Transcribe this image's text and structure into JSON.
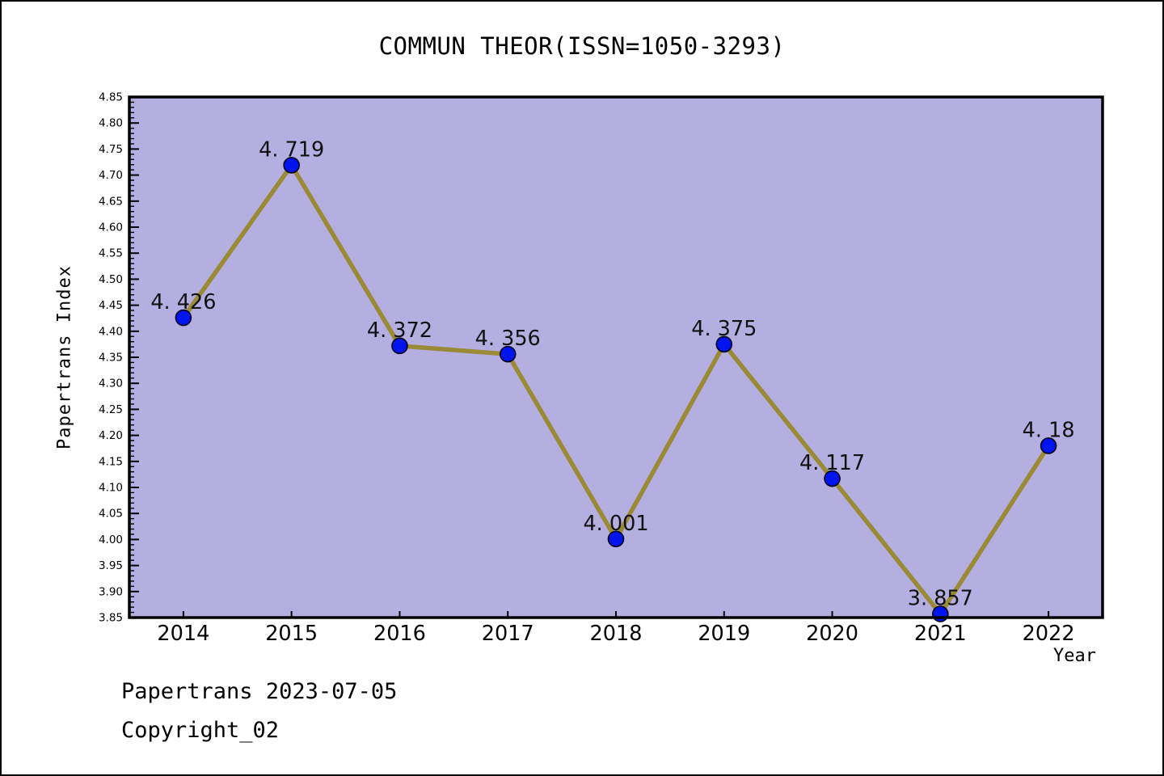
{
  "page": {
    "footer_line1": "Papertrans 2023-07-05",
    "footer_line2": "Copyright_02"
  },
  "chart_data": {
    "type": "line",
    "title": "COMMUN THEOR(ISSN=1050-3293)",
    "xlabel": "Year",
    "ylabel": "Papertrans Index",
    "x": [
      2014,
      2015,
      2016,
      2017,
      2018,
      2019,
      2020,
      2021,
      2022
    ],
    "values": [
      4.426,
      4.719,
      4.372,
      4.356,
      4.001,
      4.375,
      4.117,
      3.857,
      4.18
    ],
    "point_labels": [
      "4. 426",
      "4. 719",
      "4. 372",
      "4. 356",
      "4. 001",
      "4. 375",
      "4. 117",
      "3. 857",
      "4. 18"
    ],
    "ylim": [
      3.85,
      4.85
    ],
    "y_major_step": 0.05,
    "y_minor_step": 0.01,
    "grid": false,
    "legend": "none",
    "colors": {
      "plot_bg": "#b4afe0",
      "line": "#9a8a35",
      "marker_fill": "#0014ee",
      "marker_edge": "#000014",
      "frame": "#000000",
      "text": "#000000"
    }
  }
}
